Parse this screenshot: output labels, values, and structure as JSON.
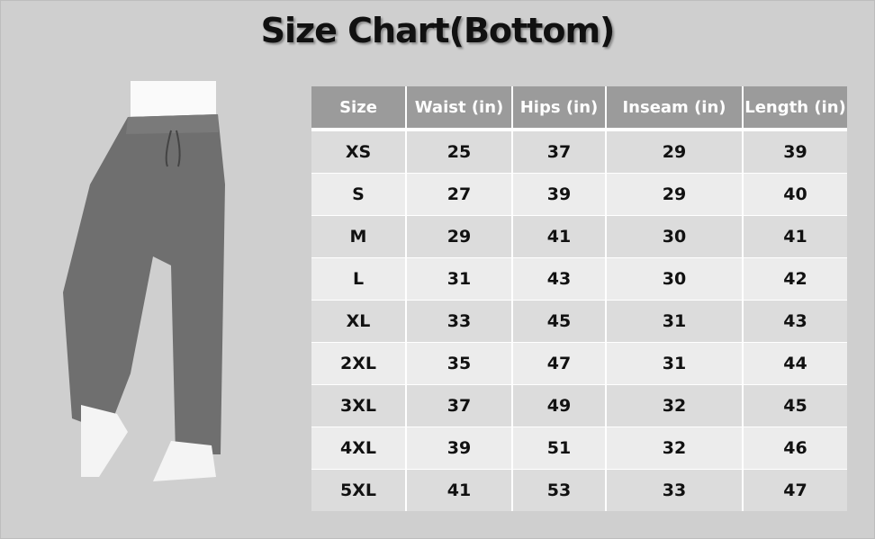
{
  "title": "Size Chart(Bottom)",
  "table": {
    "headers": [
      "Size",
      "Waist (in)",
      "Hips (in)",
      "Inseam (in)",
      "Length (in)"
    ],
    "rows": [
      [
        "XS",
        "25",
        "37",
        "29",
        "39"
      ],
      [
        "S",
        "27",
        "39",
        "29",
        "40"
      ],
      [
        "M",
        "29",
        "41",
        "30",
        "41"
      ],
      [
        "L",
        "31",
        "43",
        "30",
        "42"
      ],
      [
        "XL",
        "33",
        "45",
        "31",
        "43"
      ],
      [
        "2XL",
        "35",
        "47",
        "31",
        "44"
      ],
      [
        "3XL",
        "37",
        "49",
        "32",
        "45"
      ],
      [
        "4XL",
        "39",
        "51",
        "32",
        "46"
      ],
      [
        "5XL",
        "41",
        "53",
        "33",
        "47"
      ]
    ]
  },
  "colors": {
    "header_bg": "#9b9b9b",
    "row_odd": "#dcdcdc",
    "row_even": "#ececec",
    "page_bg": "#cfcfcf",
    "pants": "#6f6f6f"
  }
}
